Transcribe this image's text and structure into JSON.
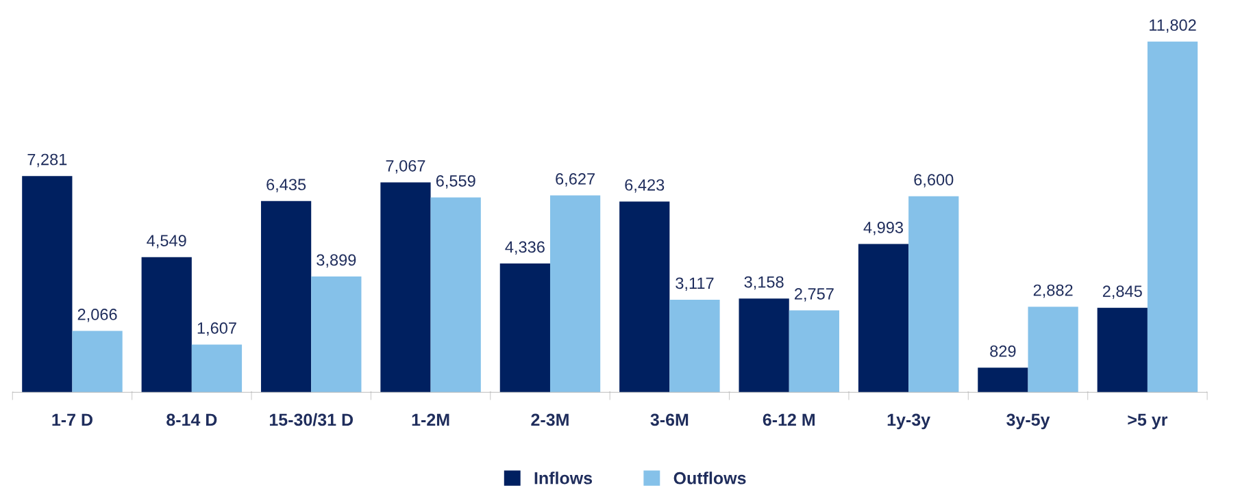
{
  "chart_data": {
    "type": "bar",
    "categories": [
      "1-7 D",
      "8-14 D",
      "15-30/31 D",
      "1-2M",
      "2-3M",
      "3-6M",
      "6-12 M",
      "1y-3y",
      "3y-5y",
      ">5 yr"
    ],
    "series": [
      {
        "name": "Inflows",
        "color": "#002060",
        "values": [
          7281,
          4549,
          6435,
          7067,
          4336,
          6423,
          3158,
          4993,
          829,
          2845
        ],
        "value_labels": [
          "7,281",
          "4,549",
          "6,435",
          "7,067",
          "4,336",
          "6,423",
          "3,158",
          "4,993",
          "829",
          "2,845"
        ]
      },
      {
        "name": "Outflows",
        "color": "#85c1e9",
        "values": [
          2066,
          1607,
          3899,
          6559,
          6627,
          3117,
          2757,
          6600,
          2882,
          11802
        ],
        "value_labels": [
          "2,066",
          "1,607",
          "3,899",
          "6,559",
          "6,627",
          "3,117",
          "2,757",
          "6,600",
          "2,882",
          "11,802"
        ]
      }
    ],
    "legend": "bottom",
    "grid": false
  }
}
